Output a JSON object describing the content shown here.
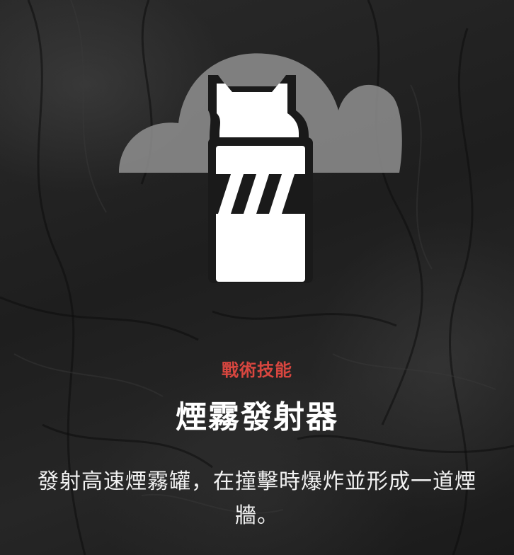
{
  "ability": {
    "category": "戰術技能",
    "name": "煙霧發射器",
    "description": "發射高速煙霧罐，在撞擊時爆炸並形成一道煙牆。",
    "icon": "smoke-launcher-icon",
    "accent_color": "#d8463f"
  },
  "colors": {
    "background": "#1e1e1e",
    "title": "#ffffff",
    "description": "#f2f2f2",
    "cloud": "#8a8a8a",
    "canister": "#ffffff"
  }
}
